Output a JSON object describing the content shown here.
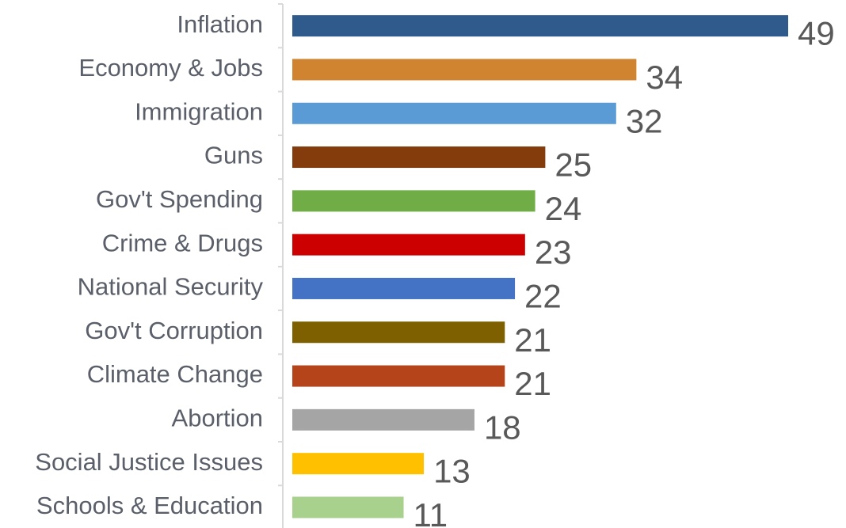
{
  "chart_data": {
    "type": "bar",
    "orientation": "horizontal",
    "categories": [
      "Inflation",
      "Economy & Jobs",
      "Immigration",
      "Guns",
      "Gov't Spending",
      "Crime & Drugs",
      "National Security",
      "Gov't Corruption",
      "Climate Change",
      "Abortion",
      "Social Justice Issues",
      "Schools & Education"
    ],
    "values": [
      49,
      34,
      32,
      25,
      24,
      23,
      22,
      21,
      21,
      18,
      13,
      11
    ],
    "colors": [
      "#2e5a8c",
      "#d08430",
      "#5b9bd5",
      "#843c0c",
      "#70ad47",
      "#cc0000",
      "#4472c4",
      "#7f6000",
      "#b5441a",
      "#a5a5a5",
      "#ffc000",
      "#a9d18e"
    ],
    "data_labels": true
  }
}
